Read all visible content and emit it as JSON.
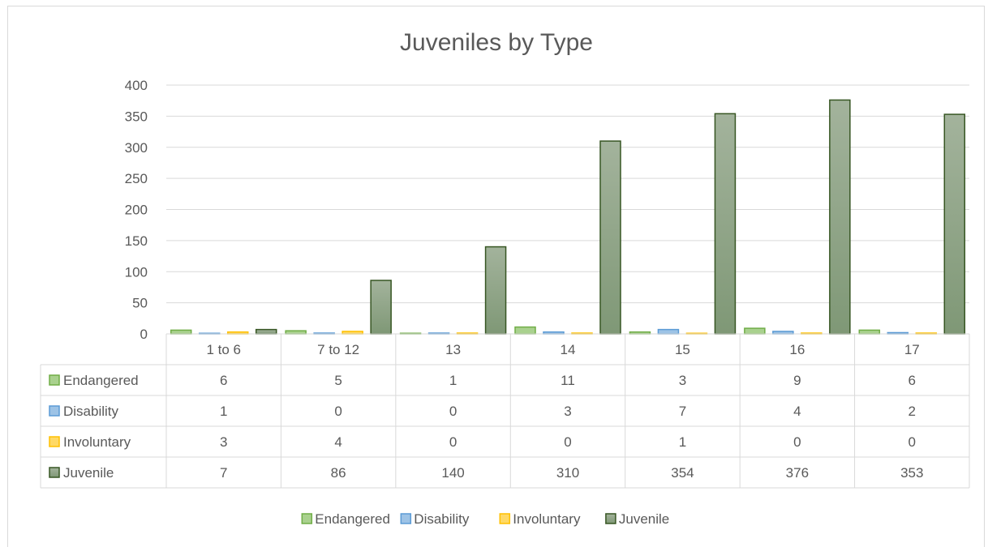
{
  "chart_data": {
    "type": "bar",
    "title": "Juveniles by Type",
    "categories": [
      "1 to 6",
      "7 to 12",
      "13",
      "14",
      "15",
      "16",
      "17"
    ],
    "ylim": [
      0,
      400
    ],
    "yticks": [
      0,
      50,
      100,
      150,
      200,
      250,
      300,
      350,
      400
    ],
    "grid": true,
    "data_table": true,
    "legend_position": "bottom",
    "series": [
      {
        "name": "Endangered",
        "values": [
          6,
          5,
          1,
          11,
          3,
          9,
          6
        ],
        "fill": "#a9d18e",
        "stroke": "#70ad47"
      },
      {
        "name": "Disability",
        "values": [
          1,
          0,
          0,
          3,
          7,
          4,
          2
        ],
        "fill": "#9dc3e6",
        "stroke": "#5b9bd5"
      },
      {
        "name": "Involuntary",
        "values": [
          3,
          4,
          0,
          0,
          1,
          0,
          0
        ],
        "fill": "#ffd966",
        "stroke": "#ffc000"
      },
      {
        "name": "Juvenile",
        "values": [
          7,
          86,
          140,
          310,
          354,
          376,
          353
        ],
        "fill": "#8fa58a",
        "stroke": "#375623"
      }
    ]
  }
}
